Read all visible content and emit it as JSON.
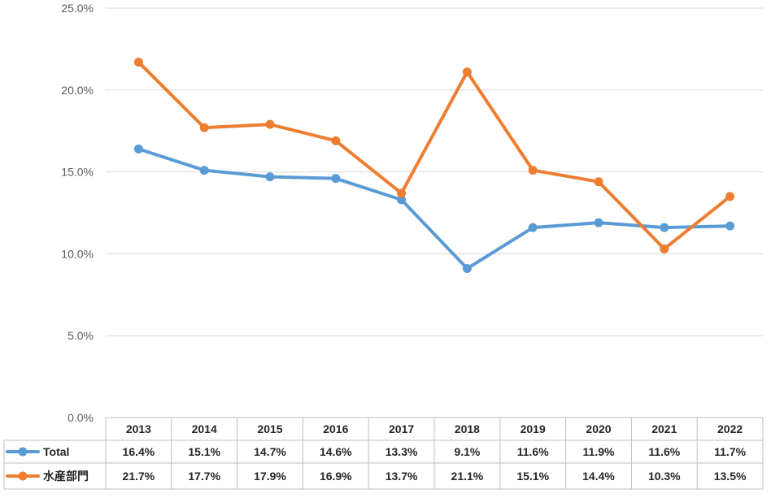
{
  "chart_data": {
    "type": "line",
    "categories": [
      "2013",
      "2014",
      "2015",
      "2016",
      "2017",
      "2018",
      "2019",
      "2020",
      "2021",
      "2022"
    ],
    "ylim": [
      0,
      25
    ],
    "yticks": [
      "0.0%",
      "5.0%",
      "10.0%",
      "15.0%",
      "20.0%",
      "25.0%"
    ],
    "grid": true,
    "legend_placement": "data-table-left",
    "series": [
      {
        "name": "Total",
        "color": "#5B9BD5",
        "values": [
          16.4,
          15.1,
          14.7,
          14.6,
          13.3,
          9.1,
          11.6,
          11.9,
          11.6,
          11.7
        ],
        "labels": [
          "16.4%",
          "15.1%",
          "14.7%",
          "14.6%",
          "13.3%",
          "9.1%",
          "11.6%",
          "11.9%",
          "11.6%",
          "11.7%"
        ]
      },
      {
        "name": "水産部門",
        "color": "#ED7D31",
        "values": [
          21.7,
          17.7,
          17.9,
          16.9,
          13.7,
          21.1,
          15.1,
          14.4,
          10.3,
          13.5
        ],
        "labels": [
          "21.7%",
          "17.7%",
          "17.9%",
          "16.9%",
          "13.7%",
          "21.1%",
          "15.1%",
          "14.4%",
          "10.3%",
          "13.5%"
        ]
      }
    ]
  }
}
